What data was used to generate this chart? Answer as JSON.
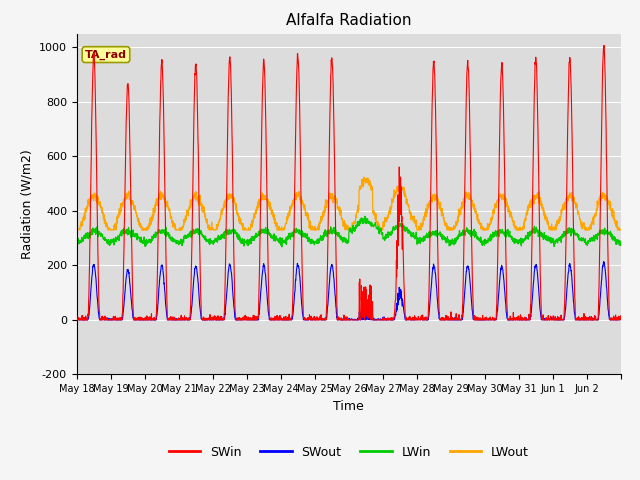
{
  "title": "Alfalfa Radiation",
  "xlabel": "Time",
  "ylabel": "Radiation (W/m2)",
  "ylim": [
    -200,
    1050
  ],
  "bg_color": "#dcdcdc",
  "fig_color": "#f5f5f5",
  "line_colors": {
    "SWin": "#ff0000",
    "SWout": "#0000ff",
    "LWin": "#00cc00",
    "LWout": "#ffa500"
  },
  "legend_labels": [
    "SWin",
    "SWout",
    "LWin",
    "LWout"
  ],
  "num_days": 16,
  "yticks": [
    -200,
    0,
    200,
    400,
    600,
    800,
    1000
  ],
  "tick_labels": [
    "May 18",
    "May 19",
    "May 20",
    "May 21",
    "May 22",
    "May 23",
    "May 24",
    "May 25",
    "May 26",
    "May 27",
    "May 28",
    "May 29",
    "May 30",
    "May 31",
    "Jun 1",
    "Jun 2",
    ""
  ]
}
